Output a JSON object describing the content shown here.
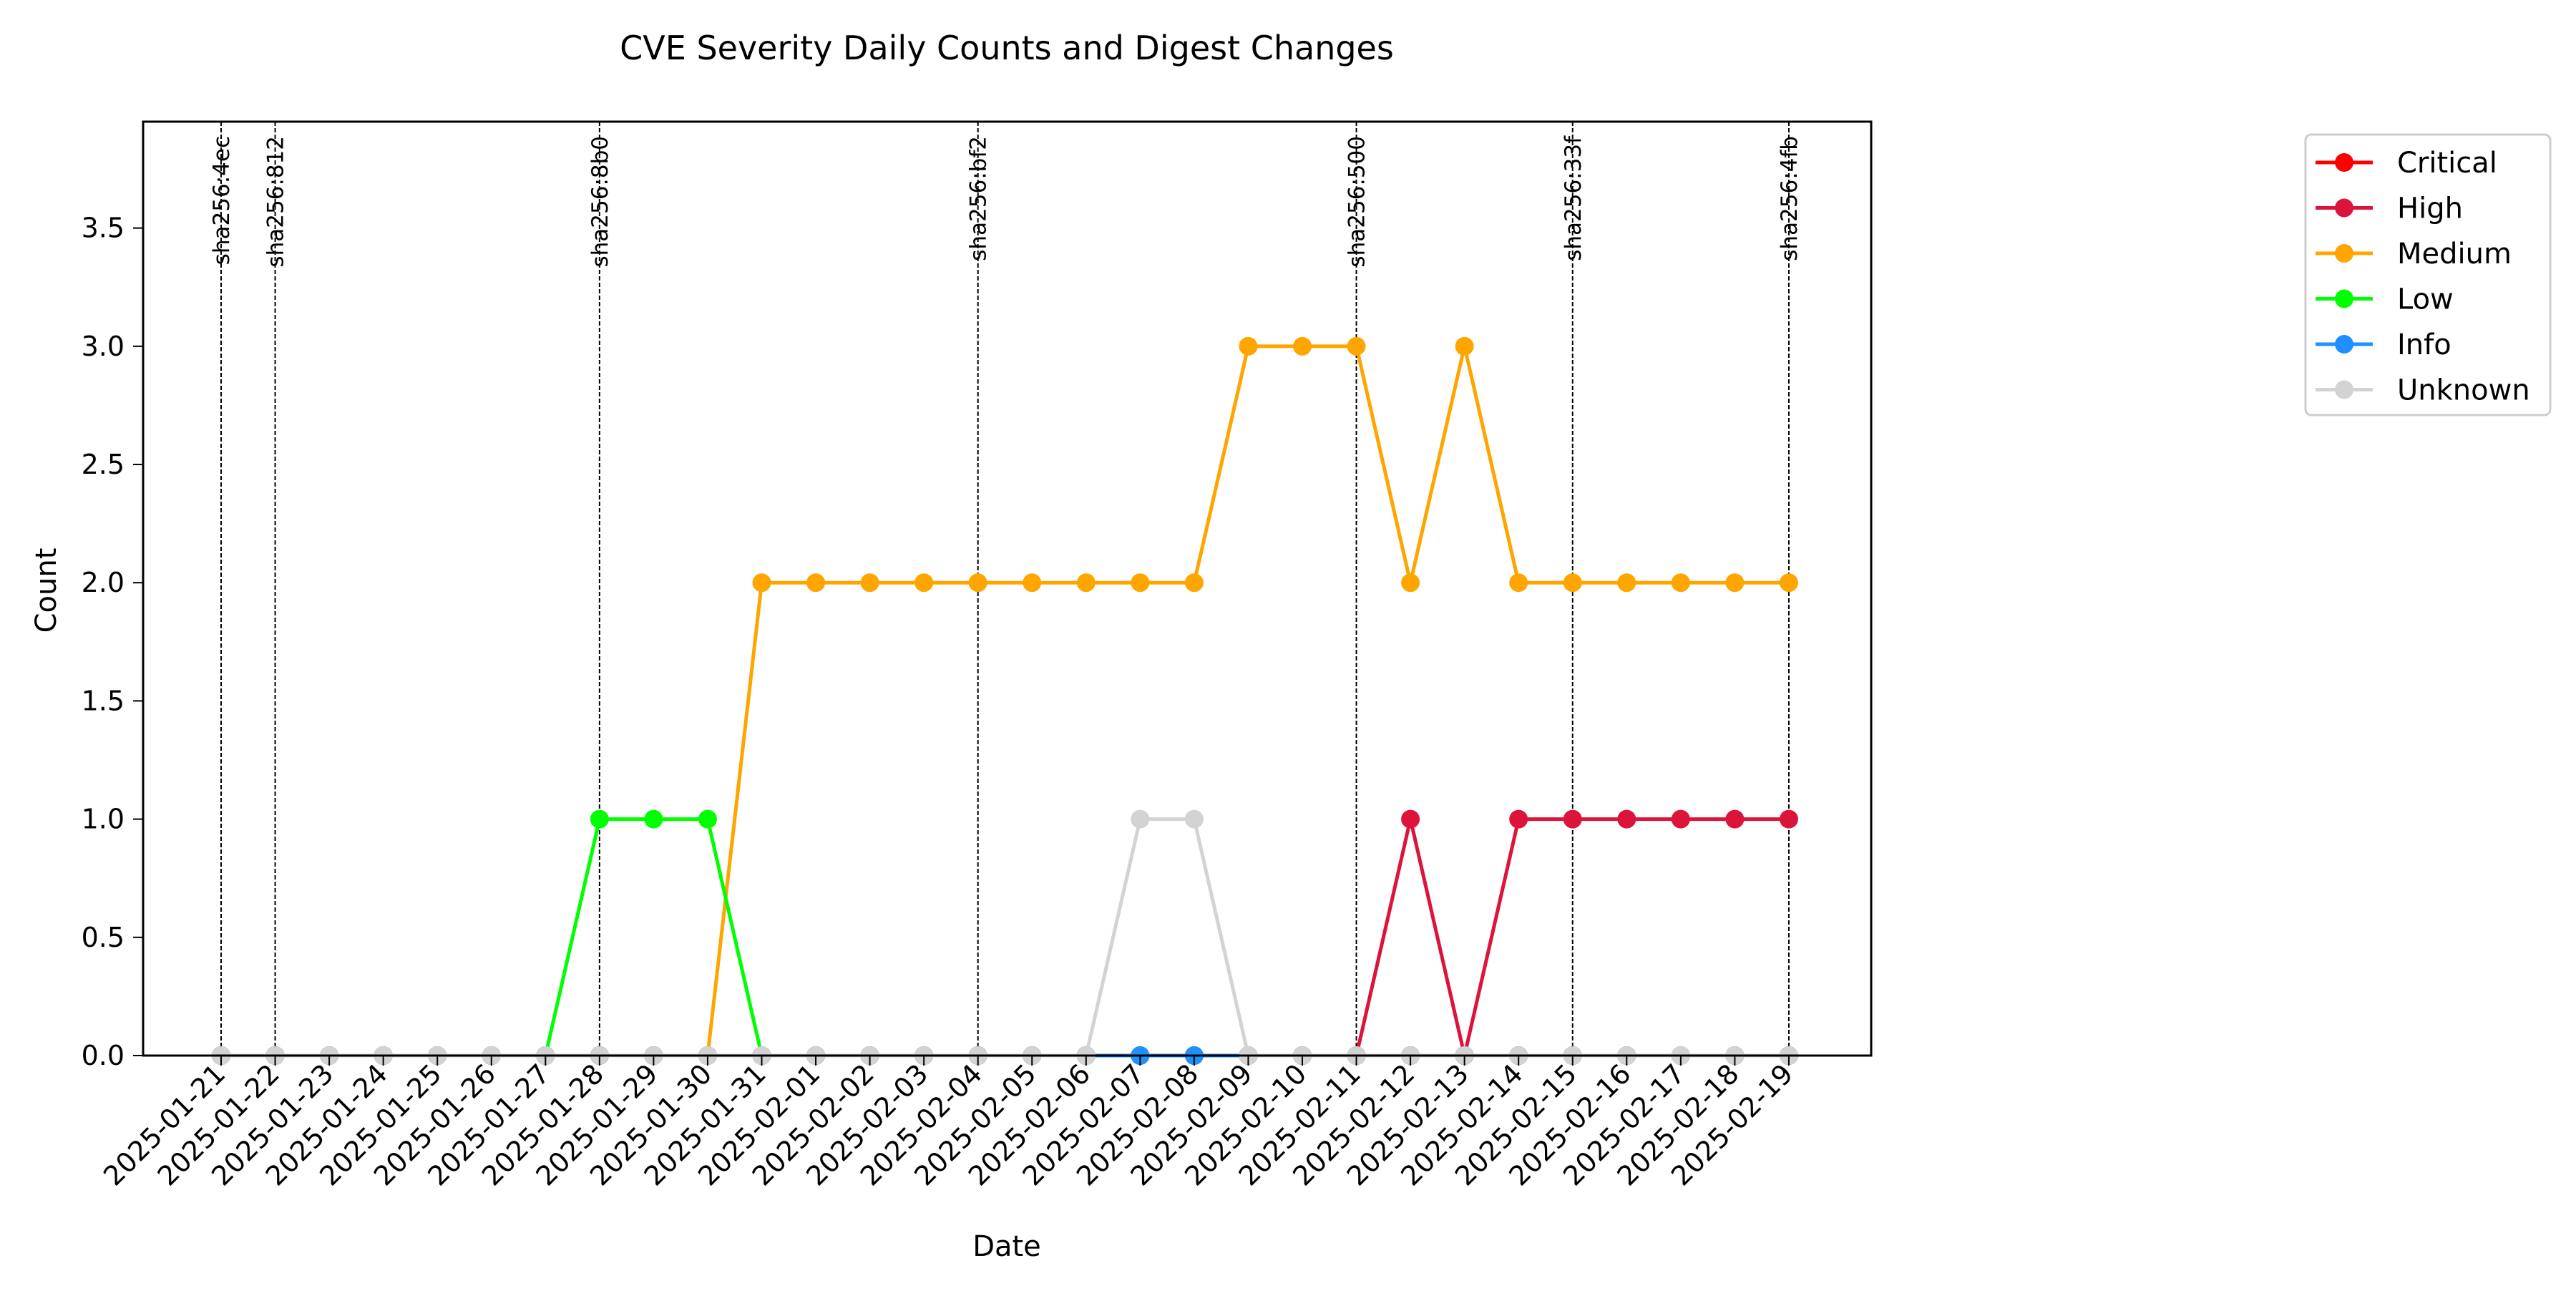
{
  "chart_data": {
    "type": "line",
    "title": "CVE Severity Daily Counts and Digest Changes",
    "xlabel": "Date",
    "ylabel": "Count",
    "ylim": [
      0,
      3.95
    ],
    "yticks": [
      "0.0",
      "0.5",
      "1.0",
      "1.5",
      "2.0",
      "2.5",
      "3.0",
      "3.5"
    ],
    "grid": false,
    "legend_position": "outside-top-right",
    "x": [
      "2025-01-21",
      "2025-01-22",
      "2025-01-23",
      "2025-01-24",
      "2025-01-25",
      "2025-01-26",
      "2025-01-27",
      "2025-01-28",
      "2025-01-29",
      "2025-01-30",
      "2025-01-31",
      "2025-02-01",
      "2025-02-02",
      "2025-02-03",
      "2025-02-04",
      "2025-02-05",
      "2025-02-06",
      "2025-02-07",
      "2025-02-08",
      "2025-02-09",
      "2025-02-10",
      "2025-02-11",
      "2025-02-12",
      "2025-02-13",
      "2025-02-14",
      "2025-02-15",
      "2025-02-16",
      "2025-02-17",
      "2025-02-18",
      "2025-02-19"
    ],
    "series": [
      {
        "name": "Critical",
        "color": "#ff0000",
        "values": [
          0,
          0,
          0,
          0,
          0,
          0,
          0,
          0,
          0,
          0,
          0,
          0,
          0,
          0,
          0,
          0,
          0,
          0,
          0,
          0,
          0,
          0,
          0,
          0,
          0,
          0,
          0,
          0,
          0,
          0
        ]
      },
      {
        "name": "High",
        "color": "#dc143c",
        "values": [
          0,
          0,
          0,
          0,
          0,
          0,
          0,
          0,
          0,
          0,
          0,
          0,
          0,
          0,
          0,
          0,
          0,
          0,
          0,
          0,
          0,
          0,
          1,
          0,
          1,
          1,
          1,
          1,
          1,
          1
        ]
      },
      {
        "name": "Medium",
        "color": "#ffa500",
        "values": [
          0,
          0,
          0,
          0,
          0,
          0,
          0,
          0,
          0,
          0,
          2,
          2,
          2,
          2,
          2,
          2,
          2,
          2,
          2,
          3,
          3,
          3,
          2,
          3,
          2,
          2,
          2,
          2,
          2,
          2
        ]
      },
      {
        "name": "Low",
        "color": "#00ff00",
        "values": [
          0,
          0,
          0,
          0,
          0,
          0,
          0,
          1,
          1,
          1,
          0,
          0,
          0,
          0,
          0,
          0,
          0,
          0,
          0,
          0,
          0,
          0,
          0,
          0,
          0,
          0,
          0,
          0,
          0,
          0
        ]
      },
      {
        "name": "Info",
        "color": "#1e90ff",
        "values": [
          0,
          0,
          0,
          0,
          0,
          0,
          0,
          0,
          0,
          0,
          0,
          0,
          0,
          0,
          0,
          0,
          0,
          0,
          0,
          0,
          0,
          0,
          0,
          0,
          0,
          0,
          0,
          0,
          0,
          0
        ]
      },
      {
        "name": "Unknown",
        "color": "#d3d3d3",
        "values": [
          0,
          0,
          0,
          0,
          0,
          0,
          0,
          0,
          0,
          0,
          0,
          0,
          0,
          0,
          0,
          0,
          0,
          1,
          1,
          0,
          0,
          0,
          0,
          0,
          0,
          0,
          0,
          0,
          0,
          0
        ]
      }
    ],
    "annotations": [
      {
        "date": "2025-01-21",
        "label": "sha256:4ec"
      },
      {
        "date": "2025-01-22",
        "label": "sha256:812"
      },
      {
        "date": "2025-01-28",
        "label": "sha256:8b0"
      },
      {
        "date": "2025-02-04",
        "label": "sha256:bf2"
      },
      {
        "date": "2025-02-11",
        "label": "sha256:500"
      },
      {
        "date": "2025-02-15",
        "label": "sha256:33f"
      },
      {
        "date": "2025-02-19",
        "label": "sha256:4fb"
      }
    ]
  }
}
